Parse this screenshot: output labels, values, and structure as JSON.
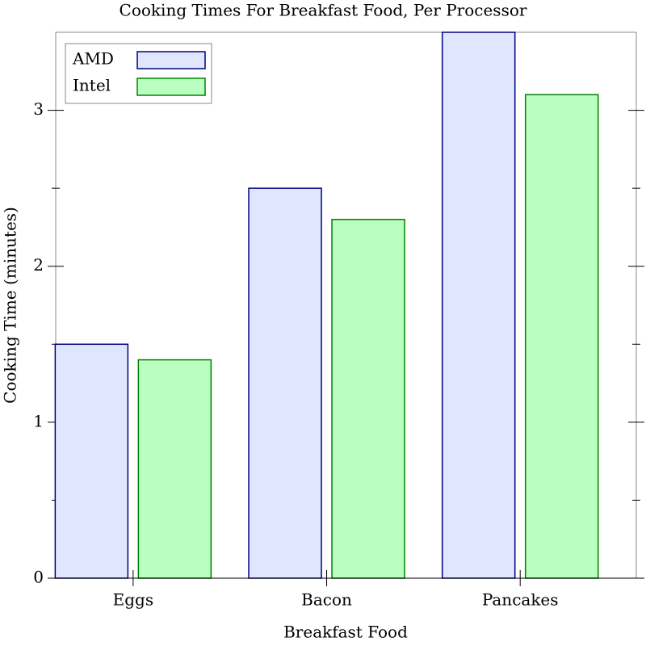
{
  "chart_data": {
    "type": "bar",
    "title": "Cooking Times For Breakfast Food, Per Processor",
    "x_label": "Breakfast Food",
    "y_label": "Cooking Time (minutes)",
    "categories": [
      "Eggs",
      "Bacon",
      "Pancakes"
    ],
    "series": [
      {
        "name": "AMD",
        "color": "#e0e6fd",
        "stroke": "#000080",
        "values": [
          1.5,
          2.5,
          3.5
        ]
      },
      {
        "name": "Intel",
        "color": "#b8ffc0",
        "stroke": "#008000",
        "values": [
          1.4,
          2.3,
          3.1
        ]
      }
    ],
    "ylim": [
      0,
      3.5
    ],
    "yticks": [
      0,
      1,
      2,
      3
    ],
    "yminorticks": [
      0.5,
      1.5,
      2.5
    ],
    "legend": "top-left"
  }
}
